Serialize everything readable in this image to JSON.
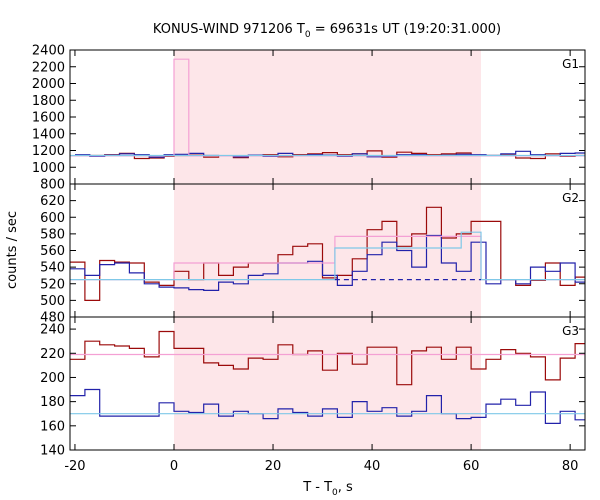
{
  "title": {
    "main": "KONUS-WIND 971206 T",
    "subscript": "0",
    "rest": " = 69631s UT (19:20:31.000)"
  },
  "ylabel": "counts / sec",
  "xlabel": {
    "main": "T - T",
    "subscript": "0",
    "rest": ", s"
  },
  "colors": {
    "shade": "#fde6e9",
    "red": "#9b0a0a",
    "blue": "#2222aa",
    "pink": "#f4a0d4",
    "cyan": "#7fc8e8",
    "frame": "#000000"
  },
  "chart_data": {
    "type": "line",
    "x_range": [
      -21,
      83
    ],
    "x_ticks": [
      -20,
      0,
      20,
      40,
      60,
      80
    ],
    "shaded_interval": [
      0,
      62
    ],
    "panels": [
      {
        "label": "G1",
        "ylim": [
          800,
          2400
        ],
        "yticks": [
          800,
          1000,
          1200,
          1400,
          1600,
          1800,
          2000,
          2200,
          2400
        ],
        "series": [
          {
            "color": "red",
            "style": "step",
            "x": [
              -20,
              -17,
              -14,
              -11,
              -8,
              -5,
              -2,
              0,
              3,
              6,
              9,
              12,
              15,
              18,
              21,
              24,
              27,
              30,
              33,
              36,
              39,
              42,
              45,
              48,
              51,
              54,
              57,
              60,
              63,
              66,
              69,
              72,
              75,
              78,
              81,
              83
            ],
            "y": [
              1135,
              1140,
              1150,
              1165,
              1105,
              1110,
              1130,
              1140,
              1145,
              1120,
              1135,
              1115,
              1140,
              1150,
              1125,
              1150,
              1160,
              1175,
              1150,
              1160,
              1195,
              1120,
              1180,
              1165,
              1150,
              1160,
              1170,
              1135,
              1140,
              1145,
              1110,
              1105,
              1160,
              1130,
              1140,
              1140
            ]
          },
          {
            "color": "blue",
            "style": "step",
            "x": [
              -20,
              -17,
              -14,
              -11,
              -8,
              -5,
              -2,
              0,
              3,
              6,
              9,
              12,
              15,
              18,
              21,
              24,
              27,
              30,
              33,
              36,
              39,
              42,
              45,
              48,
              51,
              54,
              57,
              60,
              63,
              66,
              69,
              72,
              75,
              78,
              81,
              83
            ],
            "y": [
              1150,
              1130,
              1145,
              1160,
              1150,
              1120,
              1150,
              1155,
              1165,
              1140,
              1135,
              1125,
              1145,
              1130,
              1165,
              1140,
              1150,
              1145,
              1130,
              1160,
              1125,
              1130,
              1150,
              1150,
              1135,
              1145,
              1155,
              1150,
              1140,
              1160,
              1190,
              1150,
              1140,
              1165,
              1170,
              1170
            ]
          },
          {
            "color": "pink",
            "style": "step",
            "x": [
              -21,
              0,
              3,
              83
            ],
            "y": [
              1135,
              2290,
              1135,
              1135
            ]
          },
          {
            "color": "cyan",
            "style": "line",
            "x": [
              -21,
              83
            ],
            "y": [
              1140,
              1140
            ]
          }
        ]
      },
      {
        "label": "G2",
        "ylim": [
          480,
          640
        ],
        "yticks": [
          480,
          500,
          520,
          540,
          560,
          580,
          600,
          620
        ],
        "series": [
          {
            "color": "red",
            "style": "step",
            "x": [
              -21,
              -18,
              -15,
              -12,
              -9,
              -6,
              -3,
              0,
              3,
              6,
              9,
              12,
              15,
              18,
              21,
              24,
              27,
              30,
              33,
              36,
              39,
              42,
              45,
              48,
              51,
              54,
              57,
              60,
              63,
              66,
              69,
              72,
              75,
              78,
              81,
              83
            ],
            "y": [
              546,
              500,
              548,
              546,
              545,
              522,
              518,
              535,
              525,
              545,
              530,
              540,
              545,
              545,
              555,
              565,
              568,
              527,
              530,
              550,
              585,
              595,
              565,
              580,
              612,
              575,
              580,
              595,
              595,
              525,
              518,
              524,
              545,
              518,
              528,
              528
            ]
          },
          {
            "color": "blue",
            "style": "step",
            "x": [
              -21,
              -18,
              -15,
              -12,
              -9,
              -6,
              -3,
              0,
              3,
              6,
              9,
              12,
              15,
              18,
              21,
              24,
              27,
              30,
              33,
              36,
              39,
              42,
              45,
              48,
              51,
              54,
              57,
              60,
              63,
              66,
              69,
              72,
              75,
              78,
              81,
              83
            ],
            "y": [
              538,
              530,
              543,
              545,
              533,
              520,
              516,
              515,
              513,
              512,
              522,
              520,
              530,
              532,
              545,
              545,
              547,
              530,
              518,
              535,
              555,
              570,
              560,
              540,
              578,
              545,
              535,
              570,
              520,
              525,
              520,
              540,
              535,
              545,
              522,
              522
            ]
          },
          {
            "color": "pink",
            "style": "step",
            "x": [
              -21,
              0,
              32.5,
              62,
              83
            ],
            "y": [
              525,
              545,
              577,
              525,
              525
            ]
          },
          {
            "color": "cyan",
            "style": "step",
            "x": [
              -21,
              32.5,
              58,
              62,
              83
            ],
            "y": [
              525,
              563,
              582,
              525,
              525
            ]
          },
          {
            "color": "blue",
            "style": "dashed",
            "x": [
              32.5,
              62
            ],
            "y": [
              525,
              525
            ]
          }
        ]
      },
      {
        "label": "G3",
        "ylim": [
          140,
          250
        ],
        "yticks": [
          140,
          160,
          180,
          200,
          220,
          240
        ],
        "series": [
          {
            "color": "red",
            "style": "step",
            "x": [
              -21,
              -18,
              -15,
              -12,
              -9,
              -6,
              -3,
              0,
              3,
              6,
              9,
              12,
              15,
              18,
              21,
              24,
              27,
              30,
              33,
              36,
              39,
              42,
              45,
              48,
              51,
              54,
              57,
              60,
              63,
              66,
              69,
              72,
              75,
              78,
              81,
              83
            ],
            "y": [
              215,
              230,
              227,
              226,
              224,
              217,
              238,
              224,
              224,
              212,
              210,
              207,
              216,
              215,
              227,
              219,
              222,
              206,
              220,
              211,
              225,
              225,
              194,
              222,
              225,
              215,
              225,
              207,
              215,
              223,
              220,
              217,
              198,
              216,
              228,
              210
            ]
          },
          {
            "color": "blue",
            "style": "step",
            "x": [
              -21,
              -18,
              -15,
              -12,
              -9,
              -6,
              -3,
              0,
              3,
              6,
              9,
              12,
              15,
              18,
              21,
              24,
              27,
              30,
              33,
              36,
              39,
              42,
              45,
              48,
              51,
              54,
              57,
              60,
              63,
              66,
              69,
              72,
              75,
              78,
              81,
              83
            ],
            "y": [
              185,
              190,
              168,
              168,
              168,
              168,
              179,
              172,
              171,
              178,
              168,
              172,
              170,
              166,
              174,
              171,
              168,
              174,
              167,
              180,
              172,
              175,
              168,
              172,
              185,
              170,
              166,
              167,
              178,
              182,
              177,
              188,
              162,
              172,
              165,
              165
            ]
          },
          {
            "color": "pink",
            "style": "line",
            "x": [
              -21,
              83
            ],
            "y": [
              219,
              219
            ]
          },
          {
            "color": "cyan",
            "style": "line",
            "x": [
              -21,
              83
            ],
            "y": [
              170,
              170
            ]
          }
        ]
      }
    ]
  }
}
